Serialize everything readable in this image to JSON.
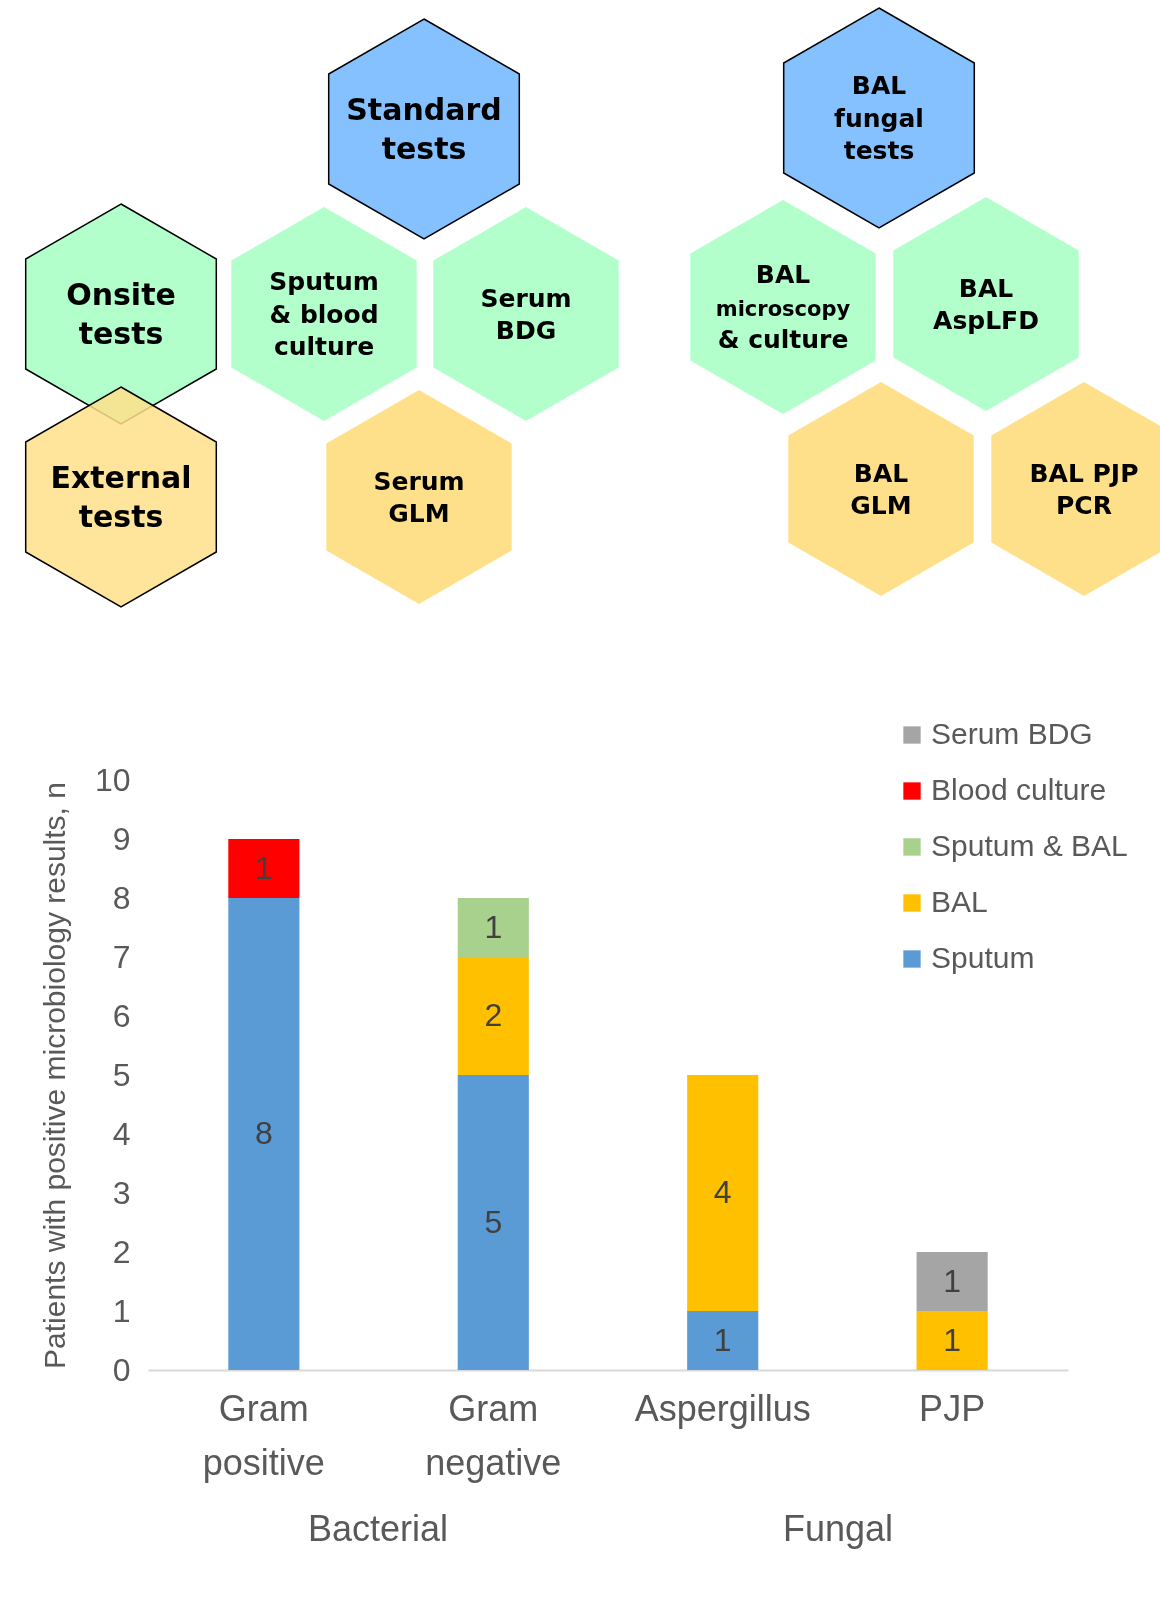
{
  "chart_data": [
    {
      "type": "other",
      "categories": [
        "Standard\ntests",
        "Onsite\ntests",
        "Sputum\n& blood\nculture",
        "Serum\nBDG",
        "External\ntests",
        "Serum\nGLM",
        "BAL\nfungal\ntests",
        "BAL\nmicroscopy\n& culture",
        "BAL\nAspLFD",
        "BAL\nGLM",
        "BAL PJP\nPCR"
      ],
      "colors": [
        "#85c1ff",
        "#b3ffcc",
        "#b3ffcc",
        "#b3ffcc",
        "#ffe08a",
        "#ffe08a",
        "#85c1ff",
        "#b3ffcc",
        "#b3ffcc",
        "#ffe08a",
        "#ffe08a"
      ]
    },
    {
      "type": "bar",
      "stacked": true,
      "ylabel": "Patients with positive microbiology results, n",
      "categories": [
        "Gram positive",
        "Gram negative",
        "Aspergillus",
        "PJP"
      ],
      "series": [
        {
          "name": "Sputum",
          "color": "#5b9bd5",
          "values": [
            8,
            5,
            1,
            null
          ]
        },
        {
          "name": "BAL",
          "color": "#ffc000",
          "values": [
            null,
            2,
            4,
            1
          ]
        },
        {
          "name": "Sputum & BAL",
          "color": "#a9d18e",
          "values": [
            null,
            1,
            null,
            null
          ]
        },
        {
          "name": "Blood culture",
          "color": "#ff0000",
          "values": [
            1,
            null,
            null,
            null
          ]
        },
        {
          "name": "Serum BDG",
          "color": "#a5a5a5",
          "values": [
            null,
            null,
            null,
            1
          ]
        }
      ],
      "ylim": [
        0,
        10
      ],
      "yticks": [
        0,
        1,
        2,
        3,
        4,
        5,
        6,
        7,
        8,
        9,
        10
      ],
      "grid": false,
      "legend": "top right",
      "data_labels": true,
      "annotations": [
        "Bacterial",
        "Fungal"
      ]
    }
  ]
}
